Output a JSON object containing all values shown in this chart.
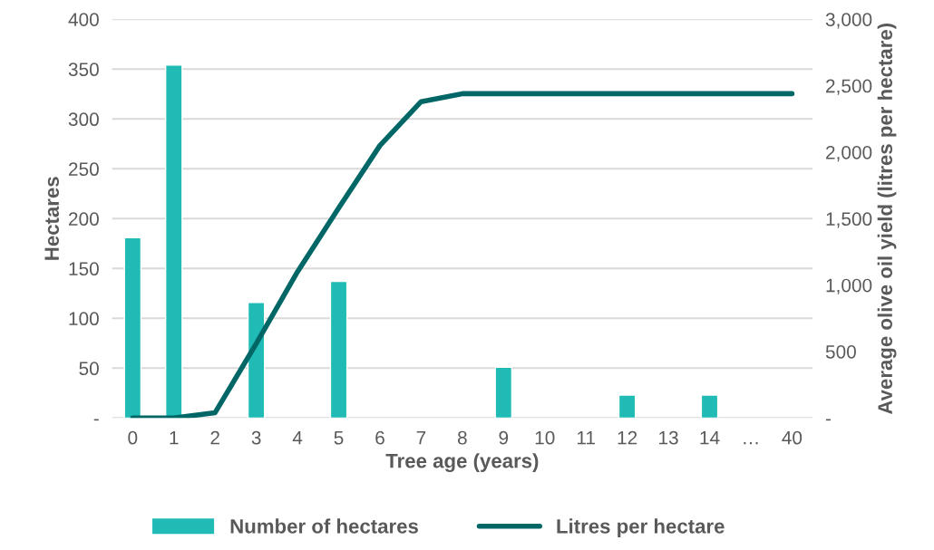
{
  "chart_data": {
    "type": "bar",
    "xlabel": "Tree age (years)",
    "ylabel": "Hectares",
    "y2label": "Average olive oil yield (litres per hectare)",
    "categories": [
      "0",
      "1",
      "2",
      "3",
      "4",
      "5",
      "6",
      "7",
      "8",
      "9",
      "10",
      "11",
      "12",
      "13",
      "14",
      "…",
      "40"
    ],
    "series": [
      {
        "name": "Number of hectares",
        "color": "#21bbb6",
        "values": [
          181,
          354,
          null,
          116,
          null,
          137,
          null,
          null,
          null,
          51,
          null,
          null,
          23,
          null,
          23,
          null,
          null
        ]
      },
      {
        "name": "Litres per hectare",
        "type": "line",
        "axis": "y2",
        "color": "#006666",
        "values": [
          0,
          0,
          40,
          560,
          1100,
          1580,
          2050,
          2380,
          2440,
          2440,
          2440,
          2440,
          2440,
          2440,
          2440,
          2440,
          2440
        ]
      }
    ],
    "ylim": [
      0,
      400
    ],
    "yticks": [
      {
        "value": 0,
        "label": "-"
      },
      50,
      100,
      150,
      200,
      250,
      300,
      350,
      400
    ],
    "y2lim": [
      0,
      3000
    ],
    "y2ticks": [
      {
        "value": 0,
        "label": "-"
      },
      {
        "value": 500,
        "label": "500"
      },
      {
        "value": 1000,
        "label": "1,000"
      },
      {
        "value": 1500,
        "label": "1,500"
      },
      {
        "value": 2000,
        "label": "2,000"
      },
      {
        "value": 2500,
        "label": "2,500"
      },
      {
        "value": 3000,
        "label": "3,000"
      }
    ],
    "grid": "y",
    "legend": "bottom"
  }
}
